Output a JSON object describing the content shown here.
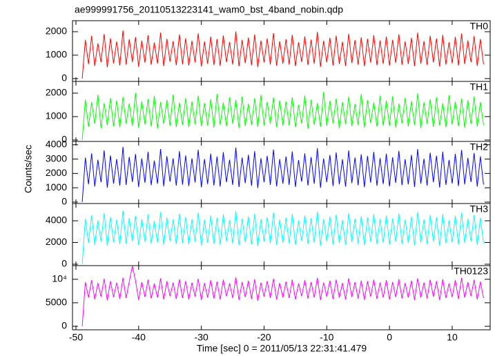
{
  "chart_data": {
    "type": "line",
    "title": "ae999991756_20110513223141_wam0_bst_4band_nobin.qdp",
    "xlabel": "Time [sec] 0 = 2011/05/13 22:31:41.479",
    "ylabel": "Counts/sec",
    "xlim": [
      -50.55,
      16.06
    ],
    "xticks": [
      -50,
      -40,
      -30,
      -20,
      -10,
      0,
      10
    ],
    "x": [
      -49,
      -48.5,
      -48,
      -47.5,
      -47,
      -46.5,
      -46,
      -45.5,
      -45,
      -44.5,
      -44,
      -43.5,
      -43,
      -42.5,
      -42,
      -41.5,
      -41,
      -40.5,
      -40,
      -39.5,
      -39,
      -38.5,
      -38,
      -37.5,
      -37,
      -36.5,
      -36,
      -35.5,
      -35,
      -34.5,
      -34,
      -33.5,
      -33,
      -32.5,
      -32,
      -31.5,
      -31,
      -30.5,
      -30,
      -29.5,
      -29,
      -28.5,
      -28,
      -27.5,
      -27,
      -26.5,
      -26,
      -25.5,
      -25,
      -24.5,
      -24,
      -23.5,
      -23,
      -22.5,
      -22,
      -21.5,
      -21,
      -20.5,
      -20,
      -19.5,
      -19,
      -18.5,
      -18,
      -17.5,
      -17,
      -16.5,
      -16,
      -15.5,
      -15,
      -14.5,
      -14,
      -13.5,
      -13,
      -12.5,
      -12,
      -11.5,
      -11,
      -10.5,
      -10,
      -9.5,
      -9,
      -8.5,
      -8,
      -7.5,
      -7,
      -6.5,
      -6,
      -5.5,
      -5,
      -4.5,
      -4,
      -3.5,
      -3,
      -2.5,
      -2,
      -1.5,
      -1,
      -0.5,
      0,
      0.5,
      1,
      1.5,
      2,
      2.5,
      3,
      3.5,
      4,
      4.5,
      5,
      5.5,
      6,
      6.5,
      7,
      7.5,
      8,
      8.5,
      9,
      9.5,
      10,
      10.5,
      11,
      11.5,
      12,
      12.5,
      13,
      13.5,
      14,
      14.5,
      15
    ],
    "panels": [
      {
        "name": "TH0",
        "color": "#ff0000",
        "ylim": [
          -120,
          2470
        ],
        "yticks": [
          0,
          1000,
          2000
        ],
        "values": [
          0,
          1650,
          620,
          1820,
          540,
          1500,
          700,
          1900,
          480,
          1720,
          650,
          1580,
          560,
          2050,
          600,
          1680,
          710,
          1770,
          500,
          1620,
          680,
          1850,
          590,
          1540,
          640,
          1960,
          530,
          1700,
          720,
          1600,
          570,
          1880,
          610,
          1720,
          560,
          1610,
          690,
          1930,
          510,
          1580,
          630,
          1790,
          580,
          1690,
          540,
          1840,
          700,
          1560,
          600,
          2010,
          520,
          1650,
          660,
          1750,
          570,
          1880,
          490,
          1620,
          690,
          1710,
          600,
          1940,
          550,
          1590,
          640,
          1680,
          600,
          1870,
          530,
          1550,
          710,
          1800,
          580,
          1660,
          640,
          1990,
          500,
          1610,
          690,
          1740,
          560,
          1830,
          620,
          1570,
          540,
          1910,
          660,
          1640,
          590,
          1760,
          520,
          1700,
          680,
          1850,
          570,
          1620,
          630,
          1790,
          550,
          1650,
          670,
          1890,
          590,
          1580,
          620,
          1740,
          530,
          1960,
          640,
          1600,
          580,
          1820,
          690,
          1710,
          510,
          1860,
          600,
          1550,
          650,
          1780,
          560,
          1920,
          620,
          1630,
          700,
          1810,
          540,
          1690,
          610
        ]
      },
      {
        "name": "TH1",
        "color": "#00ff00",
        "ylim": [
          -60,
          2500
        ],
        "yticks": [
          0,
          1000,
          2000
        ],
        "values": [
          0,
          1720,
          560,
          1610,
          690,
          1930,
          510,
          1580,
          630,
          1790,
          580,
          1690,
          540,
          1840,
          700,
          1560,
          600,
          2010,
          520,
          1650,
          660,
          1750,
          570,
          1880,
          490,
          1620,
          690,
          1710,
          600,
          1940,
          550,
          1590,
          640,
          1790,
          550,
          1650,
          670,
          1890,
          590,
          1580,
          620,
          1740,
          530,
          1960,
          640,
          1600,
          580,
          1820,
          690,
          1710,
          510,
          1860,
          600,
          1550,
          650,
          1780,
          560,
          1920,
          620,
          1630,
          700,
          1810,
          540,
          1690,
          610,
          1650,
          620,
          1820,
          540,
          1500,
          700,
          1900,
          480,
          1720,
          650,
          1580,
          560,
          2050,
          600,
          1680,
          710,
          1770,
          500,
          1620,
          680,
          1850,
          590,
          1540,
          640,
          1960,
          530,
          1700,
          720,
          1600,
          570,
          1880,
          610,
          1680,
          600,
          1870,
          530,
          1550,
          710,
          1800,
          580,
          1660,
          640,
          1990,
          500,
          1610,
          690,
          1740,
          560,
          1830,
          620,
          1570,
          540,
          1910,
          660,
          1640,
          590,
          1760,
          520,
          1700,
          680,
          1850,
          570,
          1620,
          630
        ]
      },
      {
        "name": "TH2",
        "color": "#0000ff",
        "ylim": [
          -100,
          4230
        ],
        "yticks": [
          0,
          1000,
          2000,
          3000,
          4000
        ],
        "values": [
          0,
          3100,
          1250,
          3400,
          1080,
          2950,
          1380,
          3600,
          1000,
          3250,
          1300,
          3000,
          1150,
          3850,
          1200,
          3150,
          1400,
          3350,
          1050,
          3050,
          1350,
          3500,
          1180,
          2900,
          1280,
          3700,
          1100,
          3200,
          1420,
          3050,
          1150,
          3550,
          1220,
          3250,
          1120,
          3050,
          1370,
          3650,
          1030,
          3000,
          1260,
          3380,
          1160,
          3180,
          1080,
          3480,
          1390,
          2950,
          1200,
          3800,
          1050,
          3100,
          1320,
          3300,
          1140,
          3550,
          980,
          3060,
          1380,
          3220,
          1200,
          3660,
          1100,
          3000,
          1280,
          3180,
          1200,
          3530,
          1060,
          2930,
          1420,
          3400,
          1160,
          3140,
          1280,
          3750,
          1000,
          3040,
          1380,
          3290,
          1120,
          3460,
          1240,
          2980,
          1080,
          3600,
          1320,
          3100,
          1180,
          3330,
          1040,
          3210,
          1360,
          3500,
          1140,
          3060,
          1260,
          3380,
          1100,
          3120,
          1340,
          3570,
          1180,
          2990,
          1240,
          3290,
          1060,
          3700,
          1280,
          3020,
          1160,
          3440,
          1380,
          3230,
          1020,
          3520,
          1200,
          2940,
          1300,
          3360,
          1120,
          3630,
          1240,
          3080,
          1400,
          3420,
          1080,
          3190,
          1220
        ]
      },
      {
        "name": "TH3",
        "color": "#00ffff",
        "ylim": [
          -130,
          5590
        ],
        "yticks": [
          0,
          2000,
          4000
        ],
        "values": [
          0,
          4200,
          1950,
          4500,
          1780,
          4050,
          2080,
          4700,
          1700,
          4350,
          2000,
          4100,
          1850,
          4950,
          1900,
          4250,
          2100,
          4450,
          1750,
          4150,
          2050,
          4600,
          1880,
          4000,
          1980,
          4800,
          1800,
          4300,
          2120,
          4150,
          1850,
          4650,
          1920,
          4350,
          1820,
          4150,
          2070,
          4750,
          1730,
          4100,
          1960,
          4480,
          1860,
          4280,
          1780,
          4580,
          2090,
          4050,
          1900,
          4900,
          1750,
          4200,
          2020,
          4400,
          1840,
          4650,
          1680,
          4160,
          2080,
          4320,
          1900,
          4760,
          1800,
          4100,
          1980,
          4280,
          1900,
          4630,
          1760,
          4030,
          2120,
          4500,
          1860,
          4240,
          1980,
          4850,
          1700,
          4140,
          2080,
          4390,
          1820,
          4560,
          1940,
          4080,
          1780,
          4700,
          2020,
          4200,
          1880,
          4430,
          1740,
          4310,
          2060,
          4600,
          1840,
          4160,
          1960,
          4480,
          1800,
          4220,
          2040,
          4670,
          1880,
          4090,
          1940,
          4390,
          1760,
          4800,
          1980,
          4120,
          1860,
          4540,
          2080,
          4330,
          1720,
          4620,
          1900,
          4040,
          2000,
          4460,
          1820,
          4730,
          1940,
          4180,
          2100,
          4520,
          1780,
          4290,
          1920
        ]
      },
      {
        "name": "TH0123",
        "color": "#ff00ff",
        "ylim": [
          -740,
          12900
        ],
        "yticks": [
          0,
          5000,
          {
            "value": 10000,
            "label": "10⁴"
          }
        ],
        "values": [
          0,
          9400,
          6100,
          9800,
          5700,
          9200,
          6300,
          10100,
          5500,
          9600,
          6200,
          9300,
          5800,
          10300,
          6000,
          9500,
          12800,
          9700,
          5600,
          9400,
          6200,
          9900,
          5900,
          9100,
          6100,
          10200,
          5700,
          9600,
          6400,
          9300,
          5800,
          10000,
          6000,
          9600,
          5700,
          9300,
          6300,
          10100,
          5600,
          9200,
          6100,
          9800,
          5900,
          9500,
          5700,
          9900,
          6400,
          9100,
          6000,
          10400,
          5600,
          9400,
          6200,
          9700,
          5800,
          10000,
          5400,
          9300,
          6300,
          9600,
          6000,
          10100,
          5700,
          9200,
          6100,
          9500,
          6000,
          9900,
          5700,
          9100,
          6400,
          9800,
          5900,
          9400,
          6100,
          10300,
          5600,
          9300,
          6300,
          9700,
          5800,
          9900,
          6100,
          9200,
          5700,
          10200,
          6200,
          9400,
          5900,
          9700,
          5600,
          9600,
          6300,
          9900,
          5800,
          9300,
          6100,
          9800,
          5700,
          9400,
          6200,
          10000,
          5900,
          9200,
          6100,
          9700,
          5600,
          10200,
          6100,
          9300,
          5900,
          9900,
          6300,
          9600,
          5600,
          10000,
          6000,
          9100,
          6200,
          9800,
          5800,
          10300,
          6100,
          9400,
          6400,
          9900,
          5700,
          9500,
          6000
        ]
      }
    ]
  }
}
